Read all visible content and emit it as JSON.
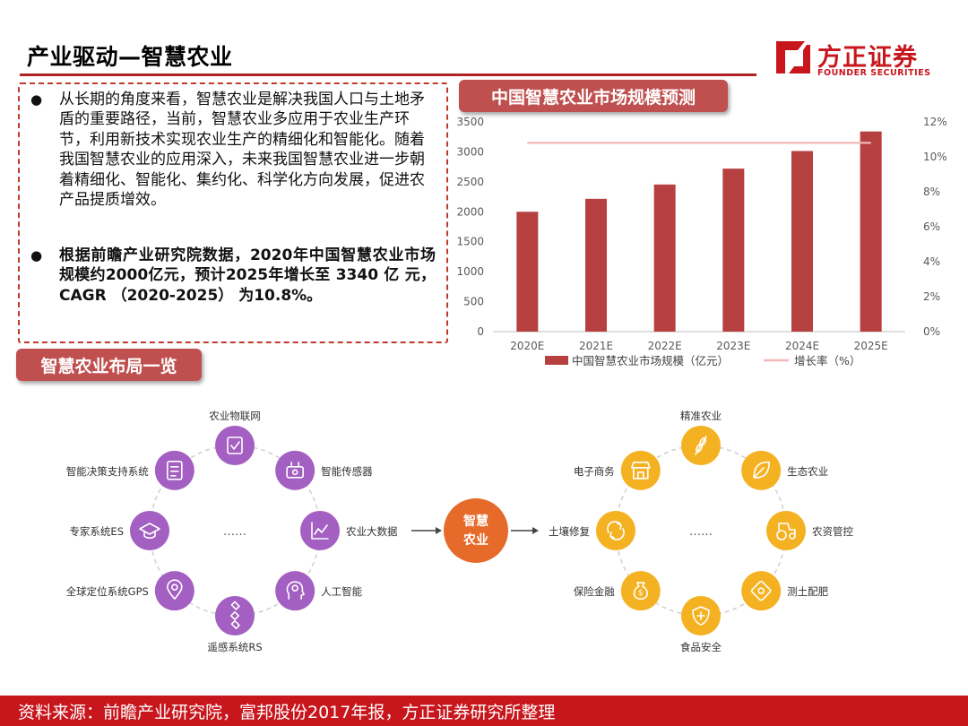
{
  "header": {
    "title": "产业驱动—智慧农业",
    "logo_cn": "方正证券",
    "logo_en": "FOUNDER SECURITIES"
  },
  "text_box": {
    "bullet_1": "从长期的角度来看，智慧农业是解决我国人口与土地矛盾的重要路径，当前，智慧农业多应用于农业生产环节，利用新技术实现农业生产的精细化和智能化。随着我国智慧农业的应用深入，未来我国智慧农业进一步朝着精细化、智能化、集约化、科学化方向发展，促进农产品提质增效。",
    "bullet_2": "根据前瞻产业研究院数据，2020年中国智慧农业市场规模约2000亿元，预计2025年增长至 3340 亿 元， CAGR （2020-2025） 为10.8%。"
  },
  "badges": {
    "chart": "中国智慧农业市场规模预测",
    "layout": "智慧农业布局一览"
  },
  "chart_data": {
    "type": "bar",
    "categories": [
      "2020E",
      "2021E",
      "2022E",
      "2023E",
      "2024E",
      "2025E"
    ],
    "series": [
      {
        "name": "中国智慧农业市场规模（亿元）",
        "type": "bar",
        "axis": "left",
        "values": [
          2000,
          2216,
          2455,
          2720,
          3014,
          3340
        ],
        "color": "#b5403f"
      },
      {
        "name": "增长率（%）",
        "type": "line",
        "axis": "right",
        "values": [
          10.8,
          10.8,
          10.8,
          10.8,
          10.8,
          10.8
        ],
        "color": "#f2b8b8"
      }
    ],
    "y_left": {
      "min": 0,
      "max": 3500,
      "ticks": [
        "0",
        "500",
        "1000",
        "1500",
        "2000",
        "2500",
        "3000",
        "3500"
      ]
    },
    "y_right": {
      "min": 0,
      "max": 12,
      "ticks": [
        "0%",
        "2%",
        "4%",
        "6%",
        "8%",
        "10%",
        "12%"
      ]
    },
    "grid": false,
    "legend_position": "bottom"
  },
  "layout_diagram": {
    "left_ring": [
      {
        "label": "农业物联网",
        "icon": "checklist-icon"
      },
      {
        "label": "智能传感器",
        "icon": "sensor-icon"
      },
      {
        "label": "农业大数据",
        "icon": "line-chart-icon"
      },
      {
        "label": "人工智能",
        "icon": "head-brain-icon"
      },
      {
        "label": "遥感系统RS",
        "icon": "satellite-icon"
      },
      {
        "label": "全球定位系统GPS",
        "icon": "map-pin-icon"
      },
      {
        "label": "专家系统ES",
        "icon": "graduation-cap-icon"
      },
      {
        "label": "智能决策支持系统",
        "icon": "document-icon"
      }
    ],
    "left_center": "……",
    "hub_line1": "智慧",
    "hub_line2": "农业",
    "right_ring": [
      {
        "label": "精准农业",
        "icon": "wheat-icon"
      },
      {
        "label": "生态农业",
        "icon": "leaf-icon"
      },
      {
        "label": "农资管控",
        "icon": "tractor-icon"
      },
      {
        "label": "测土配肥",
        "icon": "soil-test-icon"
      },
      {
        "label": "食品安全",
        "icon": "shield-icon"
      },
      {
        "label": "保险金融",
        "icon": "money-bag-icon"
      },
      {
        "label": "土壤修复",
        "icon": "recycle-icon"
      },
      {
        "label": "电子商务",
        "icon": "storefront-icon"
      }
    ],
    "right_center": "……",
    "colors": {
      "purple": "#a35fc1",
      "orange": "#f4b223",
      "hub": "#e66b2b"
    }
  },
  "footer": {
    "source": "资料来源：前瞻产业研究院，富邦股份2017年报，方正证券研究所整理"
  }
}
